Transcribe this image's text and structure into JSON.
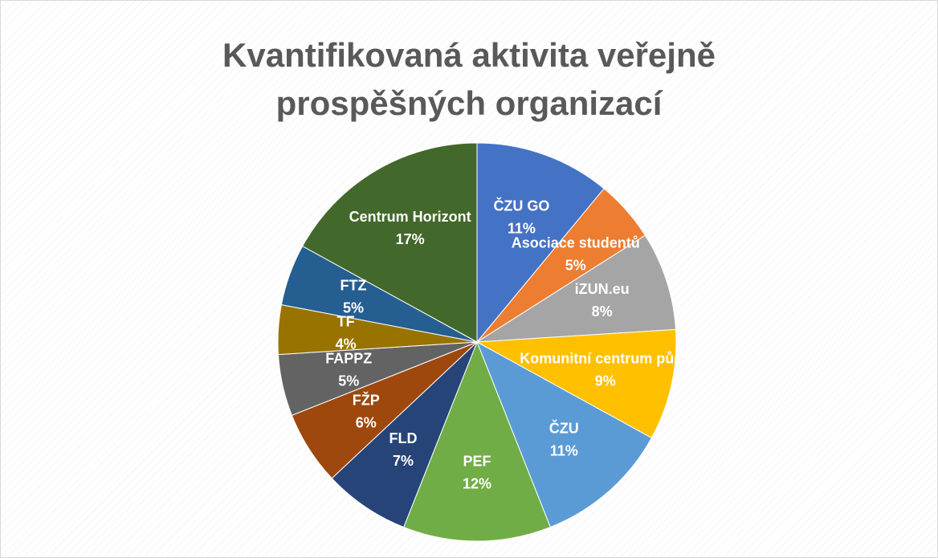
{
  "chart_data": {
    "type": "pie",
    "title": "Kvantifikovaná aktivita veřejně prospěšných organizací",
    "categories": [
      "ČZU GO",
      "Asociace studentů",
      "iZUN.eu",
      "Komunitní centrum půda",
      "ČZU",
      "PEF",
      "FLD",
      "FŽP",
      "FAPPZ",
      "TF",
      "FTZ",
      "Centrum Horizont"
    ],
    "values": [
      11,
      5,
      8,
      9,
      11,
      12,
      7,
      6,
      5,
      4,
      5,
      17
    ],
    "value_labels": [
      "11%",
      "5%",
      "8%",
      "9%",
      "11%",
      "12%",
      "7%",
      "6%",
      "5%",
      "4%",
      "5%",
      "17%"
    ],
    "colors": [
      "#4472c4",
      "#ed7d31",
      "#a5a5a5",
      "#ffc000",
      "#5b9bd5",
      "#70ad47",
      "#264478",
      "#9e480e",
      "#636363",
      "#997300",
      "#255e91",
      "#43682b"
    ]
  }
}
